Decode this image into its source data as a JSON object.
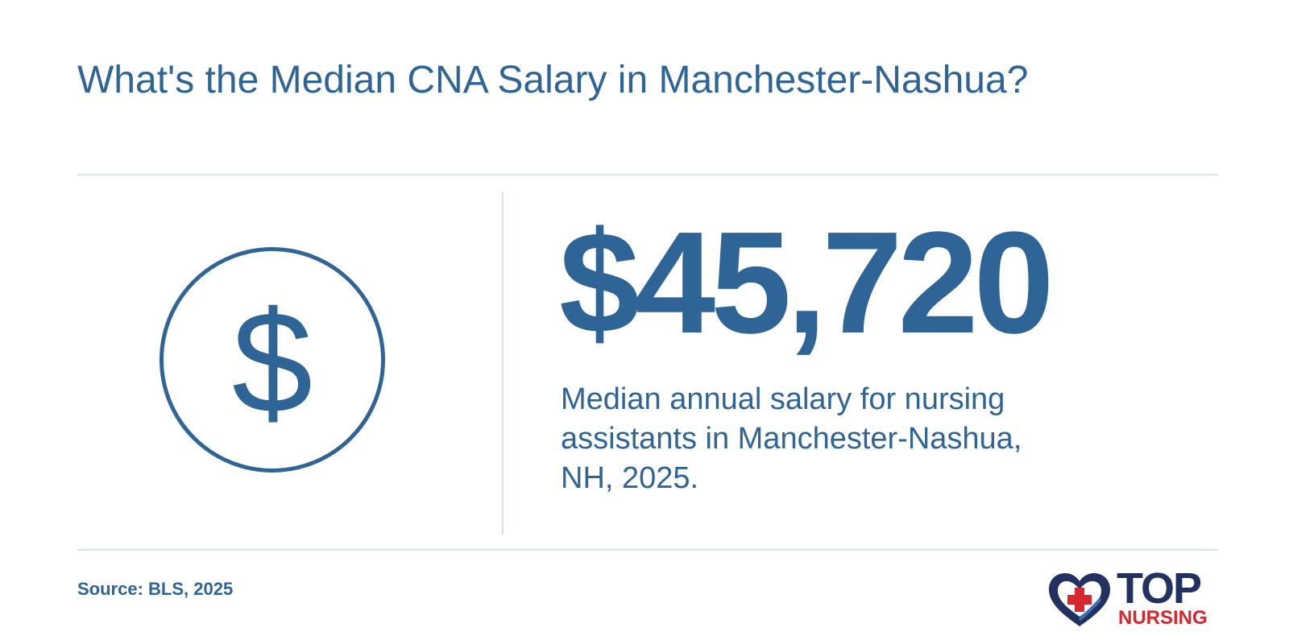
{
  "header": {
    "title": "What's the Median CNA Salary in Manchester-Nashua?"
  },
  "main": {
    "icon": "dollar-circle-icon",
    "salary_value": "$45,720",
    "description": "Median annual salary for nursing assistants in Manchester-Nashua, NH, 2025."
  },
  "footer": {
    "source": "Source: BLS, 2025",
    "logo": {
      "icon": "heart-cross-icon",
      "top_text": "TOP",
      "bottom_text": "NURSING"
    }
  },
  "colors": {
    "primary": "#2f6496",
    "divider": "#d9e3ea",
    "logo_navy": "#22315f",
    "logo_red": "#d6262e"
  }
}
